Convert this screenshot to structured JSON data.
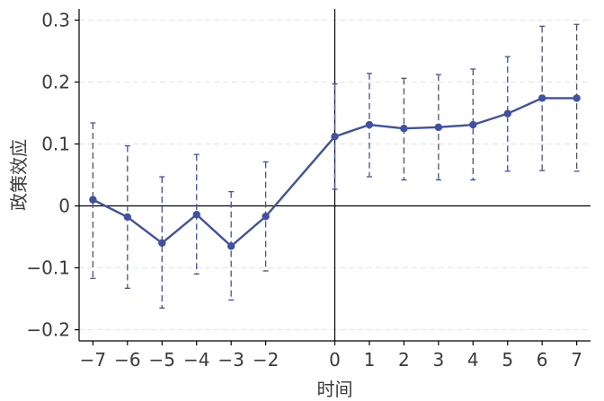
{
  "chart_data": {
    "type": "line",
    "title": "",
    "xlabel": "时间",
    "ylabel": "政策效应",
    "x": [
      -7,
      -6,
      -5,
      -4,
      -3,
      -2,
      0,
      1,
      2,
      3,
      4,
      5,
      6,
      7
    ],
    "series": [
      {
        "values": [
          0.01,
          -0.018,
          -0.06,
          -0.014,
          -0.065,
          -0.017,
          0.112,
          0.131,
          0.125,
          0.127,
          0.131,
          0.149,
          0.174,
          0.174
        ],
        "ci_lower": [
          -0.117,
          -0.133,
          -0.165,
          -0.11,
          -0.152,
          -0.105,
          0.027,
          0.047,
          0.042,
          0.042,
          0.042,
          0.056,
          0.057,
          0.056
        ],
        "ci_upper": [
          0.134,
          0.097,
          0.047,
          0.083,
          0.023,
          0.071,
          0.197,
          0.214,
          0.206,
          0.212,
          0.221,
          0.241,
          0.29,
          0.293
        ]
      }
    ],
    "x_ticks": [
      -7,
      -6,
      -5,
      -4,
      -3,
      -2,
      0,
      1,
      2,
      3,
      4,
      5,
      6,
      7
    ],
    "x_tick_labels": [
      "−7",
      "−6",
      "−5",
      "−4",
      "−3",
      "−2",
      "0",
      "1",
      "2",
      "3",
      "4",
      "5",
      "6",
      "7"
    ],
    "y_ticks": [
      -0.2,
      -0.1,
      0,
      0.1,
      0.2,
      0.3
    ],
    "y_tick_labels": [
      "−0.2",
      "−0.1",
      "0",
      "0.1",
      "0.2",
      "0.3"
    ],
    "ylim": [
      -0.218,
      0.318
    ],
    "grid": true,
    "reference_lines": {
      "horizontal_at_y": 0,
      "vertical_at_x": 0
    },
    "colors": {
      "series": "#3f51a5",
      "axis": "#000000",
      "grid": "#e3e3e3",
      "text": "#3a3a3a"
    }
  }
}
